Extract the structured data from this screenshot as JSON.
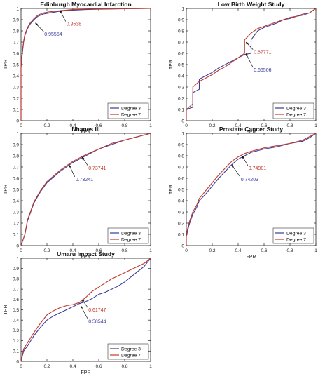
{
  "chart_data": [
    {
      "type": "line",
      "title": "Edinburgh Myocardial Infarction",
      "xlabel": "FPR",
      "ylabel": "TPR",
      "xlim": [
        0,
        1
      ],
      "ylim": [
        0,
        1
      ],
      "xticks": [
        "0",
        "0.2",
        "0.4",
        "0.6",
        "0.8",
        "1"
      ],
      "yticks": [
        "0",
        "0.1",
        "0.2",
        "0.3",
        "0.4",
        "0.5",
        "0.6",
        "0.7",
        "0.8",
        "0.9",
        "1"
      ],
      "legend_position": "bottom-right",
      "series": [
        {
          "name": "Degree 3",
          "color": "#3b3b9a",
          "x": [
            0,
            0,
            0.01,
            0.02,
            0.03,
            0.05,
            0.07,
            0.1,
            0.13,
            0.17,
            0.22,
            0.3,
            0.4,
            0.5,
            0.6,
            0.7,
            0.8,
            0.9,
            1
          ],
          "y": [
            0,
            0.47,
            0.6,
            0.7,
            0.76,
            0.82,
            0.86,
            0.9,
            0.93,
            0.95,
            0.96,
            0.975,
            0.985,
            0.99,
            0.993,
            0.995,
            0.997,
            0.999,
            1
          ]
        },
        {
          "name": "Degree 7",
          "color": "#c0392b",
          "x": [
            0,
            0,
            0.01,
            0.02,
            0.03,
            0.05,
            0.07,
            0.1,
            0.13,
            0.17,
            0.22,
            0.3,
            0.4,
            0.5,
            0.6,
            0.7,
            0.8,
            0.9,
            1
          ],
          "y": [
            0,
            0.5,
            0.62,
            0.71,
            0.77,
            0.83,
            0.87,
            0.91,
            0.94,
            0.96,
            0.97,
            0.98,
            0.99,
            0.993,
            0.995,
            0.997,
            0.998,
            0.999,
            1
          ]
        }
      ],
      "annotations": [
        {
          "text": "0.95554",
          "color": "#3b3b9a",
          "x": 0.11,
          "y": 0.87,
          "tx": 0.18,
          "ty": 0.8
        },
        {
          "text": "0.9538",
          "color": "#c0392b",
          "x": 0.3,
          "y": 0.985,
          "tx": 0.35,
          "ty": 0.89
        }
      ]
    },
    {
      "type": "line",
      "title": "Low Birth Weight Study",
      "xlabel": "FPR",
      "ylabel": "TPR",
      "xlim": [
        0,
        1
      ],
      "ylim": [
        0,
        1
      ],
      "xticks": [
        "0",
        "0.2",
        "0.4",
        "0.6",
        "0.8",
        "1"
      ],
      "yticks": [
        "0",
        "0.1",
        "0.2",
        "0.3",
        "0.4",
        "0.5",
        "0.6",
        "0.7",
        "0.8",
        "0.9",
        "1"
      ],
      "legend_position": "bottom-right",
      "series": [
        {
          "name": "Degree 3",
          "color": "#3b3b9a",
          "x": [
            0,
            0,
            0.05,
            0.05,
            0.1,
            0.1,
            0.15,
            0.2,
            0.25,
            0.3,
            0.35,
            0.4,
            0.45,
            0.5,
            0.5,
            0.55,
            0.6,
            0.65,
            0.7,
            0.75,
            0.8,
            0.85,
            0.9,
            0.95,
            1
          ],
          "y": [
            0,
            0.1,
            0.12,
            0.25,
            0.28,
            0.37,
            0.4,
            0.43,
            0.47,
            0.5,
            0.53,
            0.56,
            0.59,
            0.6,
            0.72,
            0.8,
            0.83,
            0.85,
            0.87,
            0.9,
            0.91,
            0.93,
            0.94,
            0.96,
            1
          ]
        },
        {
          "name": "Degree 7",
          "color": "#c0392b",
          "x": [
            0,
            0,
            0.05,
            0.05,
            0.1,
            0.15,
            0.2,
            0.25,
            0.3,
            0.35,
            0.4,
            0.45,
            0.45,
            0.5,
            0.55,
            0.6,
            0.65,
            0.7,
            0.75,
            0.8,
            0.85,
            0.9,
            0.95,
            1
          ],
          "y": [
            0,
            0.1,
            0.15,
            0.3,
            0.35,
            0.38,
            0.41,
            0.45,
            0.48,
            0.52,
            0.56,
            0.6,
            0.72,
            0.78,
            0.82,
            0.84,
            0.86,
            0.88,
            0.9,
            0.92,
            0.93,
            0.95,
            0.96,
            1
          ]
        }
      ],
      "annotations": [
        {
          "text": "0.67771",
          "color": "#c0392b",
          "x": 0.46,
          "y": 0.7,
          "tx": 0.52,
          "ty": 0.64
        },
        {
          "text": "0.66506",
          "color": "#3b3b9a",
          "x": 0.46,
          "y": 0.6,
          "tx": 0.52,
          "ty": 0.48
        }
      ]
    },
    {
      "type": "line",
      "title": "Nhanes III",
      "xlabel": "FPR",
      "ylabel": "TPR",
      "xlim": [
        0,
        1
      ],
      "ylim": [
        0,
        1
      ],
      "xticks": [
        "0",
        "0.2",
        "0.4",
        "0.6",
        "0.8",
        "1"
      ],
      "yticks": [
        "0",
        "0.1",
        "0.2",
        "0.3",
        "0.4",
        "0.5",
        "0.6",
        "0.7",
        "0.8",
        "0.9",
        "1"
      ],
      "legend_position": "bottom-right",
      "series": [
        {
          "name": "Degree 3",
          "color": "#3b3b9a",
          "x": [
            0,
            0.03,
            0.05,
            0.1,
            0.15,
            0.2,
            0.3,
            0.4,
            0.5,
            0.6,
            0.7,
            0.8,
            0.9,
            1
          ],
          "y": [
            0,
            0.1,
            0.22,
            0.38,
            0.48,
            0.56,
            0.66,
            0.74,
            0.8,
            0.86,
            0.9,
            0.94,
            0.97,
            1
          ]
        },
        {
          "name": "Degree 7",
          "color": "#c0392b",
          "x": [
            0,
            0.03,
            0.05,
            0.1,
            0.15,
            0.2,
            0.3,
            0.4,
            0.5,
            0.6,
            0.7,
            0.8,
            0.9,
            1
          ],
          "y": [
            0,
            0.1,
            0.23,
            0.39,
            0.49,
            0.57,
            0.67,
            0.75,
            0.81,
            0.86,
            0.91,
            0.94,
            0.97,
            1
          ]
        }
      ],
      "annotations": [
        {
          "text": "0.73741",
          "color": "#c0392b",
          "x": 0.47,
          "y": 0.79,
          "tx": 0.52,
          "ty": 0.72
        },
        {
          "text": "0.73241",
          "color": "#3b3b9a",
          "x": 0.37,
          "y": 0.72,
          "tx": 0.42,
          "ty": 0.62
        }
      ]
    },
    {
      "type": "line",
      "title": "Prostate Cancer Study",
      "xlabel": "FPR",
      "ylabel": "TPR",
      "xlim": [
        0,
        1
      ],
      "ylim": [
        0,
        1
      ],
      "xticks": [
        "0",
        "0.2",
        "0.4",
        "0.6",
        "0.8",
        "1"
      ],
      "yticks": [
        "0",
        "0.1",
        "0.2",
        "0.3",
        "0.4",
        "0.5",
        "0.6",
        "0.7",
        "0.8",
        "0.9",
        "1"
      ],
      "legend_position": "bottom-right",
      "series": [
        {
          "name": "Degree 3",
          "color": "#3b3b9a",
          "x": [
            0,
            0,
            0.02,
            0.05,
            0.08,
            0.1,
            0.15,
            0.2,
            0.25,
            0.3,
            0.35,
            0.4,
            0.45,
            0.5,
            0.6,
            0.7,
            0.8,
            0.9,
            0.95,
            1
          ],
          "y": [
            0,
            0.08,
            0.18,
            0.28,
            0.34,
            0.4,
            0.46,
            0.53,
            0.6,
            0.66,
            0.72,
            0.77,
            0.8,
            0.83,
            0.86,
            0.88,
            0.91,
            0.93,
            0.96,
            1
          ]
        },
        {
          "name": "Degree 7",
          "color": "#c0392b",
          "x": [
            0,
            0,
            0.02,
            0.05,
            0.08,
            0.1,
            0.15,
            0.2,
            0.25,
            0.3,
            0.35,
            0.4,
            0.45,
            0.5,
            0.6,
            0.7,
            0.8,
            0.9,
            0.95,
            1
          ],
          "y": [
            0,
            0.1,
            0.2,
            0.3,
            0.36,
            0.42,
            0.49,
            0.56,
            0.63,
            0.69,
            0.75,
            0.79,
            0.82,
            0.84,
            0.87,
            0.89,
            0.91,
            0.94,
            0.97,
            1
          ]
        }
      ],
      "annotations": [
        {
          "text": "0.74981",
          "color": "#c0392b",
          "x": 0.43,
          "y": 0.8,
          "tx": 0.48,
          "ty": 0.72
        },
        {
          "text": "0.74203",
          "color": "#3b3b9a",
          "x": 0.35,
          "y": 0.72,
          "tx": 0.42,
          "ty": 0.62
        }
      ]
    },
    {
      "type": "line",
      "title": "Umaru Impact Study",
      "xlabel": "FPR",
      "ylabel": "TPR",
      "xlim": [
        0,
        1
      ],
      "ylim": [
        0,
        1
      ],
      "xticks": [
        "0",
        "0.2",
        "0.4",
        "0.6",
        "0.8",
        "1"
      ],
      "yticks": [
        "0",
        "0.1",
        "0.2",
        "0.3",
        "0.4",
        "0.5",
        "0.6",
        "0.7",
        "0.8",
        "0.9",
        "1"
      ],
      "legend_position": "bottom-right",
      "series": [
        {
          "name": "Degree 3",
          "color": "#3b3b9a",
          "x": [
            0,
            0.02,
            0.05,
            0.1,
            0.15,
            0.2,
            0.25,
            0.3,
            0.35,
            0.4,
            0.45,
            0.5,
            0.55,
            0.6,
            0.65,
            0.7,
            0.75,
            0.8,
            0.85,
            0.9,
            0.95,
            1
          ],
          "y": [
            0,
            0.1,
            0.15,
            0.25,
            0.33,
            0.4,
            0.44,
            0.47,
            0.5,
            0.53,
            0.56,
            0.58,
            0.61,
            0.65,
            0.67,
            0.7,
            0.73,
            0.77,
            0.82,
            0.87,
            0.92,
            1
          ]
        },
        {
          "name": "Degree 7",
          "color": "#c0392b",
          "x": [
            0,
            0.02,
            0.05,
            0.1,
            0.15,
            0.2,
            0.25,
            0.3,
            0.35,
            0.4,
            0.45,
            0.5,
            0.55,
            0.6,
            0.65,
            0.7,
            0.75,
            0.8,
            0.85,
            0.9,
            0.95,
            1
          ],
          "y": [
            0,
            0.12,
            0.18,
            0.28,
            0.37,
            0.45,
            0.49,
            0.52,
            0.54,
            0.55,
            0.57,
            0.62,
            0.68,
            0.72,
            0.76,
            0.8,
            0.83,
            0.86,
            0.89,
            0.92,
            0.95,
            1
          ]
        }
      ],
      "annotations": [
        {
          "text": "0.61747",
          "color": "#c0392b",
          "x": 0.47,
          "y": 0.6,
          "tx": 0.52,
          "ty": 0.53
        },
        {
          "text": "0.58544",
          "color": "#3b3b9a",
          "x": 0.46,
          "y": 0.54,
          "tx": 0.52,
          "ty": 0.42
        }
      ]
    }
  ]
}
